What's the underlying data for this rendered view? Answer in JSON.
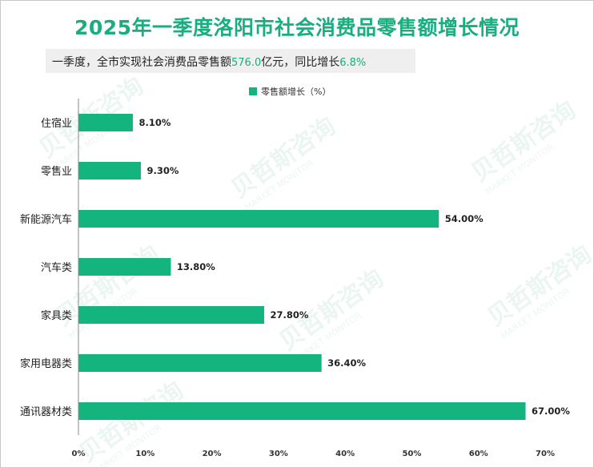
{
  "title": "2025年一季度洛阳市社会消费品零售额增长情况",
  "subtitle": {
    "prefix": "一季度，全市实现社会消费品零售额",
    "amount": "576.0",
    "middle": "亿元，同比增长",
    "rate": "6.8%"
  },
  "watermark": {
    "cn": "贝哲斯咨询",
    "en": "MARKET MONITOR"
  },
  "colors": {
    "accent": "#1aad80",
    "bar": "#13b47e"
  },
  "chart_data": {
    "type": "bar",
    "orientation": "horizontal",
    "title": "2025年一季度洛阳市社会消费品零售额增长情况",
    "legend": [
      "零售额增长（%）"
    ],
    "categories": [
      "住宿业",
      "零售业",
      "新能源汽车",
      "汽车类",
      "家具类",
      "家用电器类",
      "通讯器材类"
    ],
    "values": [
      8.1,
      9.3,
      54.0,
      13.8,
      27.8,
      36.4,
      67.0
    ],
    "value_labels": [
      "8.10%",
      "9.30%",
      "54.00%",
      "13.80%",
      "27.80%",
      "36.40%",
      "67.00%"
    ],
    "x_ticks": [
      "0%",
      "10%",
      "20%",
      "30%",
      "40%",
      "50%",
      "60%",
      "70%"
    ],
    "xlim": [
      0,
      70
    ],
    "xlabel": "",
    "ylabel": "",
    "grid": false
  }
}
